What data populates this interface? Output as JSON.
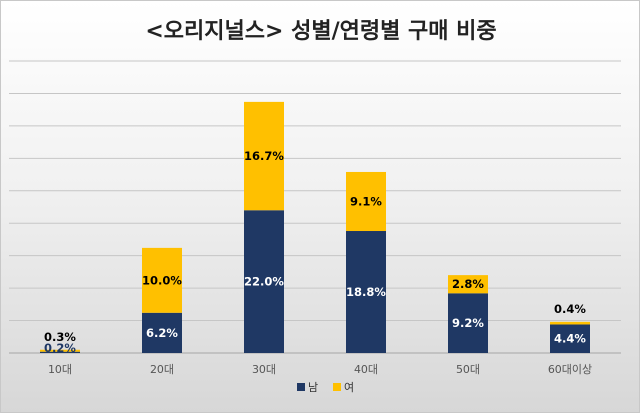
{
  "chart_data": {
    "type": "bar",
    "stacked": true,
    "title": "<오리지널스> 성별/연령별 구매 비중",
    "categories": [
      "10대",
      "20대",
      "30대",
      "40대",
      "50대",
      "60대이상"
    ],
    "series": [
      {
        "name": "남",
        "color": "#1f3864",
        "label_color": "#ffffff",
        "values": [
          0.2,
          6.2,
          22.0,
          18.8,
          9.2,
          4.4
        ],
        "labels": [
          "0.2%",
          "6.2%",
          "22.0%",
          "18.8%",
          "9.2%",
          "4.4%"
        ]
      },
      {
        "name": "여",
        "color": "#ffc000",
        "label_color": "#000000",
        "values": [
          0.3,
          10.0,
          16.7,
          9.1,
          2.8,
          0.4
        ],
        "labels": [
          "0.3%",
          "10.0%",
          "16.7%",
          "9.1%",
          "2.8%",
          "0.4%"
        ]
      }
    ],
    "ylim": [
      0,
      45
    ],
    "grid": true,
    "legend_position": "bottom",
    "xlabel": "",
    "ylabel": ""
  }
}
